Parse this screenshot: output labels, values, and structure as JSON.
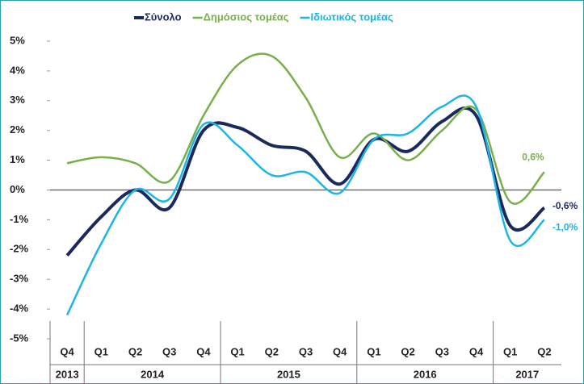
{
  "chart_data": {
    "type": "line",
    "categories": [
      "Q4",
      "Q1",
      "Q2",
      "Q3",
      "Q4",
      "Q1",
      "Q2",
      "Q3",
      "Q4",
      "Q1",
      "Q2",
      "Q3",
      "Q4",
      "Q1",
      "Q2"
    ],
    "years": [
      {
        "label": "2013",
        "count": 1
      },
      {
        "label": "2014",
        "count": 4
      },
      {
        "label": "2015",
        "count": 4
      },
      {
        "label": "2016",
        "count": 4
      },
      {
        "label": "2017",
        "count": 2
      }
    ],
    "series": [
      {
        "name": "Σύνολο",
        "color": "#1b2a5e",
        "values": [
          -2.2,
          -0.9,
          0.0,
          -0.6,
          2.0,
          2.1,
          1.5,
          1.3,
          0.2,
          1.7,
          1.3,
          2.3,
          2.5,
          -1.2,
          -0.6
        ],
        "end_label": "-0,6%"
      },
      {
        "name": "Δημόσιος τομέας",
        "color": "#77b04a",
        "values": [
          0.9,
          1.1,
          0.9,
          0.3,
          2.5,
          4.2,
          4.5,
          3.1,
          1.1,
          1.9,
          1.0,
          2.0,
          2.7,
          -0.4,
          0.6
        ],
        "end_label": "0,6%"
      },
      {
        "name": "Ιδιωτικός τομέας",
        "color": "#1cb5e8",
        "values": [
          -4.2,
          -1.8,
          0.0,
          -0.3,
          2.2,
          1.5,
          0.5,
          0.6,
          -0.1,
          1.7,
          1.9,
          2.8,
          2.8,
          -1.7,
          -1.0
        ],
        "end_label": "-1,0%"
      }
    ],
    "ylim": [
      -5,
      5
    ],
    "yticks": [
      {
        "value": 5,
        "label": "5%"
      },
      {
        "value": 4,
        "label": "4%"
      },
      {
        "value": 3,
        "label": "3%"
      },
      {
        "value": 2,
        "label": "2%"
      },
      {
        "value": 1,
        "label": "1%"
      },
      {
        "value": 0,
        "label": "0%"
      },
      {
        "value": -1,
        "label": "-1%"
      },
      {
        "value": -2,
        "label": "-2%"
      },
      {
        "value": -3,
        "label": "-3%"
      },
      {
        "value": -4,
        "label": "-4%"
      },
      {
        "value": -5,
        "label": "-5%"
      }
    ],
    "legend": "top",
    "smooth": true
  }
}
